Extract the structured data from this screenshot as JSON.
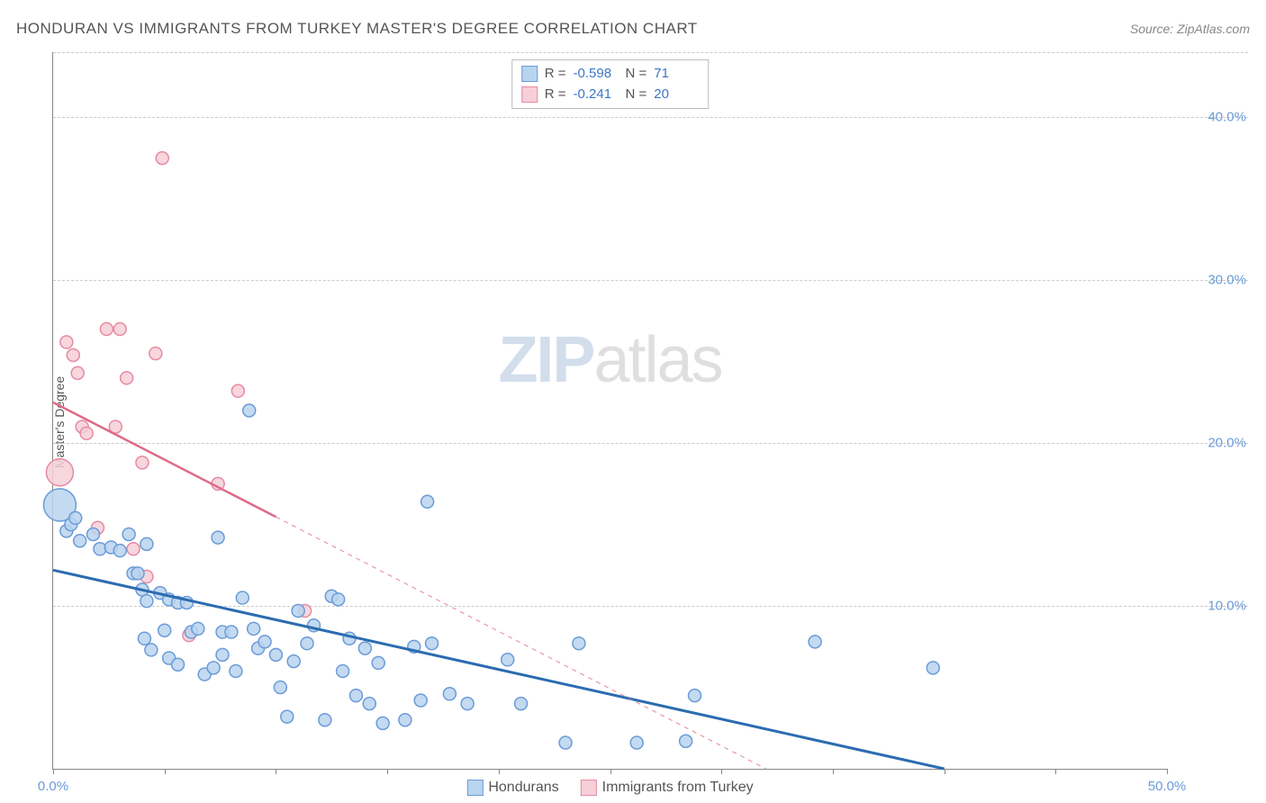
{
  "title": "HONDURAN VS IMMIGRANTS FROM TURKEY MASTER'S DEGREE CORRELATION CHART",
  "source": "Source: ZipAtlas.com",
  "watermark_left": "ZIP",
  "watermark_right": "atlas",
  "y_axis_label": "Master's Degree",
  "chart": {
    "type": "scatter",
    "xlim": [
      0,
      50
    ],
    "ylim": [
      0,
      44
    ],
    "x_ticks": [
      0,
      5,
      10,
      15,
      20,
      25,
      30,
      35,
      40,
      45,
      50
    ],
    "x_tick_labels": {
      "0": "0.0%",
      "50": "50.0%"
    },
    "y_grid": [
      10,
      20,
      30,
      40,
      44
    ],
    "y_tick_labels": {
      "10": "10.0%",
      "20": "20.0%",
      "30": "30.0%",
      "40": "40.0%"
    },
    "background_color": "#ffffff",
    "grid_color": "#cccccc",
    "axis_color": "#888888",
    "tick_label_color": "#6b9bd8",
    "series": [
      {
        "name": "Hondurans",
        "fill": "#b9d4ee",
        "stroke": "#6b9bd8",
        "trend_color": "#2b6cb0",
        "trend_width": 3,
        "trend_solid_end_x": 40,
        "trend": {
          "x1": 0,
          "y1": 12.2,
          "x2": 40,
          "y2": 0
        },
        "stats": {
          "R": "-0.598",
          "N": "71"
        },
        "points": [
          {
            "x": 0.3,
            "y": 16.2,
            "r": 18
          },
          {
            "x": 0.6,
            "y": 14.6,
            "r": 7
          },
          {
            "x": 0.8,
            "y": 15.0,
            "r": 7
          },
          {
            "x": 1.2,
            "y": 14.0,
            "r": 7
          },
          {
            "x": 1.0,
            "y": 15.4,
            "r": 7
          },
          {
            "x": 1.8,
            "y": 14.4,
            "r": 7
          },
          {
            "x": 2.1,
            "y": 13.5,
            "r": 7
          },
          {
            "x": 2.6,
            "y": 13.6,
            "r": 7
          },
          {
            "x": 3.0,
            "y": 13.4,
            "r": 7
          },
          {
            "x": 3.4,
            "y": 14.4,
            "r": 7
          },
          {
            "x": 3.6,
            "y": 12.0,
            "r": 7
          },
          {
            "x": 3.8,
            "y": 12.0,
            "r": 7
          },
          {
            "x": 4.2,
            "y": 13.8,
            "r": 7
          },
          {
            "x": 4.0,
            "y": 11.0,
            "r": 7
          },
          {
            "x": 4.2,
            "y": 10.3,
            "r": 7
          },
          {
            "x": 4.1,
            "y": 8.0,
            "r": 7
          },
          {
            "x": 4.4,
            "y": 7.3,
            "r": 7
          },
          {
            "x": 4.8,
            "y": 10.8,
            "r": 7
          },
          {
            "x": 5.2,
            "y": 10.4,
            "r": 7
          },
          {
            "x": 5.0,
            "y": 8.5,
            "r": 7
          },
          {
            "x": 5.2,
            "y": 6.8,
            "r": 7
          },
          {
            "x": 5.6,
            "y": 10.2,
            "r": 7
          },
          {
            "x": 5.6,
            "y": 6.4,
            "r": 7
          },
          {
            "x": 6.0,
            "y": 10.2,
            "r": 7
          },
          {
            "x": 6.2,
            "y": 8.4,
            "r": 7
          },
          {
            "x": 6.5,
            "y": 8.6,
            "r": 7
          },
          {
            "x": 6.8,
            "y": 5.8,
            "r": 7
          },
          {
            "x": 7.2,
            "y": 6.2,
            "r": 7
          },
          {
            "x": 7.4,
            "y": 14.2,
            "r": 7
          },
          {
            "x": 7.6,
            "y": 8.4,
            "r": 7
          },
          {
            "x": 7.6,
            "y": 7.0,
            "r": 7
          },
          {
            "x": 8.0,
            "y": 8.4,
            "r": 7
          },
          {
            "x": 8.2,
            "y": 6.0,
            "r": 7
          },
          {
            "x": 8.5,
            "y": 10.5,
            "r": 7
          },
          {
            "x": 8.8,
            "y": 22.0,
            "r": 7
          },
          {
            "x": 9.0,
            "y": 8.6,
            "r": 7
          },
          {
            "x": 9.2,
            "y": 7.4,
            "r": 7
          },
          {
            "x": 9.5,
            "y": 7.8,
            "r": 7
          },
          {
            "x": 10.0,
            "y": 7.0,
            "r": 7
          },
          {
            "x": 10.2,
            "y": 5.0,
            "r": 7
          },
          {
            "x": 10.5,
            "y": 3.2,
            "r": 7
          },
          {
            "x": 10.8,
            "y": 6.6,
            "r": 7
          },
          {
            "x": 11.0,
            "y": 9.7,
            "r": 7
          },
          {
            "x": 11.4,
            "y": 7.7,
            "r": 7
          },
          {
            "x": 11.7,
            "y": 8.8,
            "r": 7
          },
          {
            "x": 12.2,
            "y": 3.0,
            "r": 7
          },
          {
            "x": 12.5,
            "y": 10.6,
            "r": 7
          },
          {
            "x": 12.8,
            "y": 10.4,
            "r": 7
          },
          {
            "x": 13.0,
            "y": 6.0,
            "r": 7
          },
          {
            "x": 13.3,
            "y": 8.0,
            "r": 7
          },
          {
            "x": 13.6,
            "y": 4.5,
            "r": 7
          },
          {
            "x": 14.0,
            "y": 7.4,
            "r": 7
          },
          {
            "x": 14.2,
            "y": 4.0,
            "r": 7
          },
          {
            "x": 14.6,
            "y": 6.5,
            "r": 7
          },
          {
            "x": 14.8,
            "y": 2.8,
            "r": 7
          },
          {
            "x": 15.8,
            "y": 3.0,
            "r": 7
          },
          {
            "x": 16.2,
            "y": 7.5,
            "r": 7
          },
          {
            "x": 16.5,
            "y": 4.2,
            "r": 7
          },
          {
            "x": 16.8,
            "y": 16.4,
            "r": 7
          },
          {
            "x": 17.0,
            "y": 7.7,
            "r": 7
          },
          {
            "x": 17.8,
            "y": 4.6,
            "r": 7
          },
          {
            "x": 18.6,
            "y": 4.0,
            "r": 7
          },
          {
            "x": 20.4,
            "y": 6.7,
            "r": 7
          },
          {
            "x": 21.0,
            "y": 4.0,
            "r": 7
          },
          {
            "x": 23.0,
            "y": 1.6,
            "r": 7
          },
          {
            "x": 23.6,
            "y": 7.7,
            "r": 7
          },
          {
            "x": 26.2,
            "y": 1.6,
            "r": 7
          },
          {
            "x": 28.8,
            "y": 4.5,
            "r": 7
          },
          {
            "x": 28.4,
            "y": 1.7,
            "r": 7
          },
          {
            "x": 34.2,
            "y": 7.8,
            "r": 7
          },
          {
            "x": 39.5,
            "y": 6.2,
            "r": 7
          }
        ]
      },
      {
        "name": "Immigrants from Turkey",
        "fill": "#f6cfd8",
        "stroke": "#e68aa3",
        "trend_color": "#dd6b8a",
        "trend_width": 2.5,
        "trend_solid_end_x": 10,
        "trend": {
          "x1": 0,
          "y1": 22.5,
          "x2": 32,
          "y2": 0
        },
        "stats": {
          "R": "-0.241",
          "N": "20"
        },
        "points": [
          {
            "x": 0.3,
            "y": 18.2,
            "r": 15
          },
          {
            "x": 0.6,
            "y": 26.2,
            "r": 7
          },
          {
            "x": 0.9,
            "y": 25.4,
            "r": 7
          },
          {
            "x": 1.1,
            "y": 24.3,
            "r": 7
          },
          {
            "x": 1.3,
            "y": 21.0,
            "r": 7
          },
          {
            "x": 1.5,
            "y": 20.6,
            "r": 7
          },
          {
            "x": 2.0,
            "y": 14.8,
            "r": 7
          },
          {
            "x": 2.4,
            "y": 27.0,
            "r": 7
          },
          {
            "x": 2.8,
            "y": 21.0,
            "r": 7
          },
          {
            "x": 3.0,
            "y": 27.0,
            "r": 7
          },
          {
            "x": 3.3,
            "y": 24.0,
            "r": 7
          },
          {
            "x": 3.6,
            "y": 13.5,
            "r": 7
          },
          {
            "x": 4.0,
            "y": 18.8,
            "r": 7
          },
          {
            "x": 4.2,
            "y": 11.8,
            "r": 7
          },
          {
            "x": 4.6,
            "y": 25.5,
            "r": 7
          },
          {
            "x": 4.9,
            "y": 37.5,
            "r": 7
          },
          {
            "x": 6.1,
            "y": 8.2,
            "r": 7
          },
          {
            "x": 7.4,
            "y": 17.5,
            "r": 7
          },
          {
            "x": 8.3,
            "y": 23.2,
            "r": 7
          },
          {
            "x": 11.3,
            "y": 9.7,
            "r": 7
          }
        ]
      }
    ]
  },
  "legend": [
    {
      "label": "Hondurans",
      "fill": "#b9d4ee",
      "stroke": "#6b9bd8"
    },
    {
      "label": "Immigrants from Turkey",
      "fill": "#f6cfd8",
      "stroke": "#e68aa3"
    }
  ]
}
